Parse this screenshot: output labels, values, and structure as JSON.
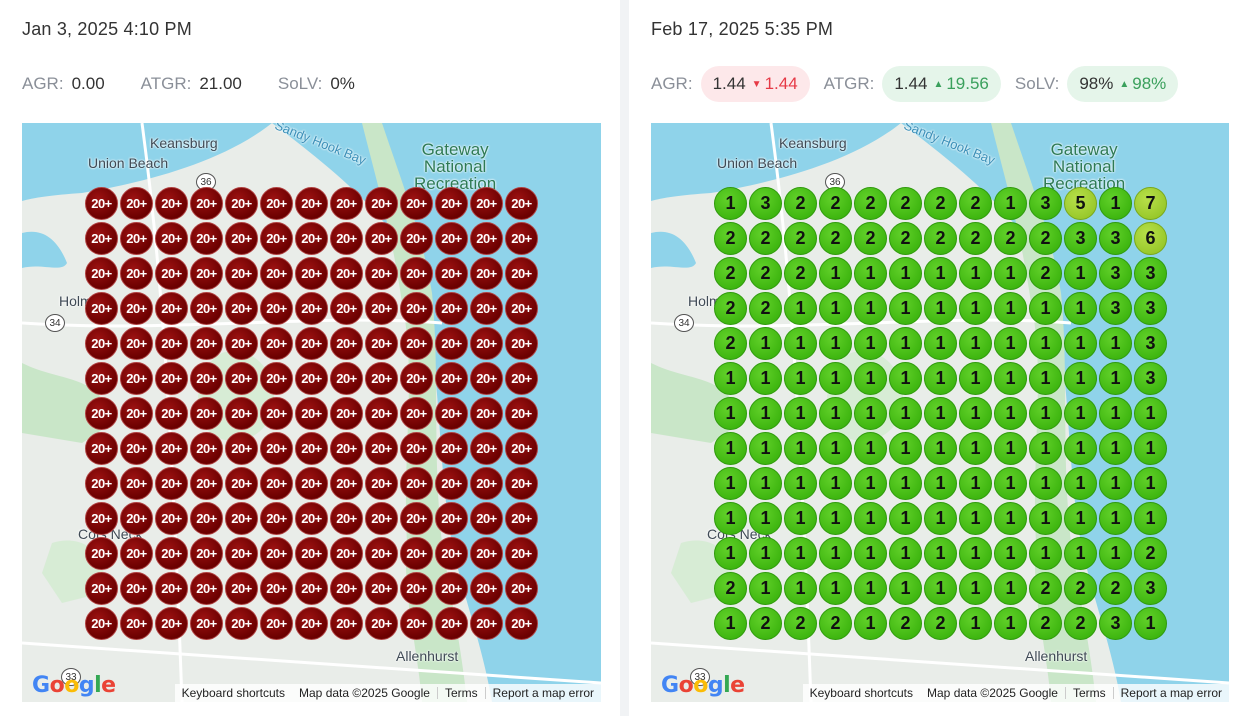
{
  "left": {
    "timestamp": "Jan 3, 2025 4:10 PM",
    "metrics": [
      {
        "label": "AGR:",
        "value": "0.00"
      },
      {
        "label": "ATGR:",
        "value": "21.00"
      },
      {
        "label": "SoLV:",
        "value": "0%"
      }
    ],
    "grid_rows": [
      [
        "20+",
        "20+",
        "20+",
        "20+",
        "20+",
        "20+",
        "20+",
        "20+",
        "20+",
        "20+",
        "20+",
        "20+",
        "20+"
      ],
      [
        "20+",
        "20+",
        "20+",
        "20+",
        "20+",
        "20+",
        "20+",
        "20+",
        "20+",
        "20+",
        "20+",
        "20+",
        "20+"
      ],
      [
        "20+",
        "20+",
        "20+",
        "20+",
        "20+",
        "20+",
        "20+",
        "20+",
        "20+",
        "20+",
        "20+",
        "20+",
        "20+"
      ],
      [
        "20+",
        "20+",
        "20+",
        "20+",
        "20+",
        "20+",
        "20+",
        "20+",
        "20+",
        "20+",
        "20+",
        "20+",
        "20+"
      ],
      [
        "20+",
        "20+",
        "20+",
        "20+",
        "20+",
        "20+",
        "20+",
        "20+",
        "20+",
        "20+",
        "20+",
        "20+",
        "20+"
      ],
      [
        "20+",
        "20+",
        "20+",
        "20+",
        "20+",
        "20+",
        "20+",
        "20+",
        "20+",
        "20+",
        "20+",
        "20+",
        "20+"
      ],
      [
        "20+",
        "20+",
        "20+",
        "20+",
        "20+",
        "20+",
        "20+",
        "20+",
        "20+",
        "20+",
        "20+",
        "20+",
        "20+"
      ],
      [
        "20+",
        "20+",
        "20+",
        "20+",
        "20+",
        "20+",
        "20+",
        "20+",
        "20+",
        "20+",
        "20+",
        "20+",
        "20+"
      ],
      [
        "20+",
        "20+",
        "20+",
        "20+",
        "20+",
        "20+",
        "20+",
        "20+",
        "20+",
        "20+",
        "20+",
        "20+",
        "20+"
      ],
      [
        "20+",
        "20+",
        "20+",
        "20+",
        "20+",
        "20+",
        "20+",
        "20+",
        "20+",
        "20+",
        "20+",
        "20+",
        "20+"
      ],
      [
        "20+",
        "20+",
        "20+",
        "20+",
        "20+",
        "20+",
        "20+",
        "20+",
        "20+",
        "20+",
        "20+",
        "20+",
        "20+"
      ],
      [
        "20+",
        "20+",
        "20+",
        "20+",
        "20+",
        "20+",
        "20+",
        "20+",
        "20+",
        "20+",
        "20+",
        "20+",
        "20+"
      ],
      [
        "20+",
        "20+",
        "20+",
        "20+",
        "20+",
        "20+",
        "20+",
        "20+",
        "20+",
        "20+",
        "20+",
        "20+",
        "20+"
      ]
    ]
  },
  "right": {
    "timestamp": "Feb 17, 2025 5:35 PM",
    "metrics": [
      {
        "label": "AGR:",
        "value": "1.44",
        "delta": "1.44",
        "direction": "down"
      },
      {
        "label": "ATGR:",
        "value": "1.44",
        "delta": "19.56",
        "direction": "up"
      },
      {
        "label": "SoLV:",
        "value": "98%",
        "delta": "98%",
        "direction": "up"
      }
    ],
    "grid_rows": [
      [
        "1",
        "3",
        "2",
        "2",
        "2",
        "2",
        "2",
        "2",
        "1",
        "3",
        "5",
        "1",
        "7"
      ],
      [
        "2",
        "2",
        "2",
        "2",
        "2",
        "2",
        "2",
        "2",
        "2",
        "2",
        "3",
        "3",
        "6"
      ],
      [
        "2",
        "2",
        "2",
        "1",
        "1",
        "1",
        "1",
        "1",
        "1",
        "2",
        "1",
        "3",
        "3"
      ],
      [
        "2",
        "2",
        "1",
        "1",
        "1",
        "1",
        "1",
        "1",
        "1",
        "1",
        "1",
        "3",
        "3"
      ],
      [
        "2",
        "1",
        "1",
        "1",
        "1",
        "1",
        "1",
        "1",
        "1",
        "1",
        "1",
        "1",
        "3"
      ],
      [
        "1",
        "1",
        "1",
        "1",
        "1",
        "1",
        "1",
        "1",
        "1",
        "1",
        "1",
        "1",
        "3"
      ],
      [
        "1",
        "1",
        "1",
        "1",
        "1",
        "1",
        "1",
        "1",
        "1",
        "1",
        "1",
        "1",
        "1"
      ],
      [
        "1",
        "1",
        "1",
        "1",
        "1",
        "1",
        "1",
        "1",
        "1",
        "1",
        "1",
        "1",
        "1"
      ],
      [
        "1",
        "1",
        "1",
        "1",
        "1",
        "1",
        "1",
        "1",
        "1",
        "1",
        "1",
        "1",
        "1"
      ],
      [
        "1",
        "1",
        "1",
        "1",
        "1",
        "1",
        "1",
        "1",
        "1",
        "1",
        "1",
        "1",
        "1"
      ],
      [
        "1",
        "1",
        "1",
        "1",
        "1",
        "1",
        "1",
        "1",
        "1",
        "1",
        "1",
        "1",
        "2"
      ],
      [
        "2",
        "1",
        "1",
        "1",
        "1",
        "1",
        "1",
        "1",
        "1",
        "2",
        "2",
        "2",
        "3"
      ],
      [
        "1",
        "2",
        "2",
        "2",
        "1",
        "2",
        "2",
        "1",
        "1",
        "2",
        "2",
        "3",
        "1"
      ]
    ]
  },
  "map": {
    "places": {
      "keansburg": "Keansburg",
      "union_beach": "Union Beach",
      "sandy_hook_bay": "Sandy Hook Bay",
      "gateway": "Gateway\nNational\nRecreation",
      "holm": "Holm",
      "cots_neck": "Cots Neck",
      "allenhurst": "Allenhurst",
      "route_36": "36",
      "route_34": "34",
      "route_33": "33"
    },
    "footer": {
      "keyboard_shortcuts": "Keyboard shortcuts",
      "map_data": "Map data ©2025 Google",
      "terms": "Terms",
      "report": "Report a map error"
    },
    "logo_letters": [
      "G",
      "o",
      "o",
      "g",
      "l",
      "e"
    ]
  },
  "colors": {
    "red_pin": "#7a0000",
    "green_pin": "#4cc21c",
    "lime_pin": "#a6d23a",
    "water": "#8fd3ea",
    "land": "#e9ede9",
    "park": "#c9e6c8"
  }
}
